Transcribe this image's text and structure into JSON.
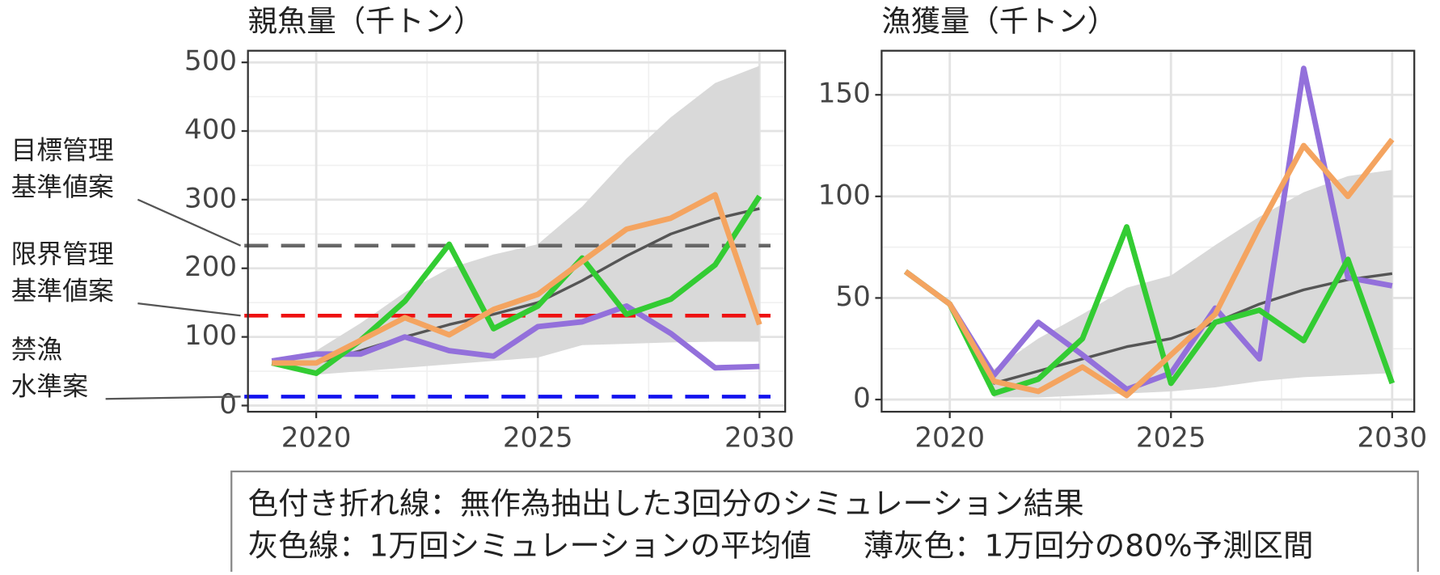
{
  "chart_data": [
    {
      "type": "line",
      "title": "親魚量（千トン）",
      "x": [
        2019,
        2020,
        2021,
        2022,
        2023,
        2024,
        2025,
        2026,
        2027,
        2028,
        2029,
        2030
      ],
      "xlim": [
        2018.46,
        2030.58
      ],
      "xticks": [
        2020,
        2025,
        2030
      ],
      "xminorticks": [
        2022.5,
        2027.5
      ],
      "ylim": [
        -9,
        517
      ],
      "yticks": [
        0,
        100,
        200,
        300,
        400,
        500
      ],
      "yminorticks": [
        50,
        150,
        250,
        350,
        450
      ],
      "grid": true,
      "band": {
        "color": "#d9d9d9",
        "upper": [
          65,
          80,
          120,
          165,
          200,
          220,
          235,
          290,
          360,
          420,
          470,
          495
        ],
        "lower": [
          60,
          45,
          50,
          55,
          60,
          65,
          70,
          88,
          90,
          92,
          93,
          93
        ]
      },
      "series": [
        {
          "color": "#555555",
          "width": 3,
          "values": [
            62,
            62,
            80,
            100,
            118,
            133,
            150,
            182,
            218,
            250,
            272,
            287
          ]
        },
        {
          "color": "#9370db",
          "width": 6,
          "values": [
            65,
            75,
            75,
            100,
            80,
            72,
            115,
            122,
            145,
            105,
            55,
            57
          ]
        },
        {
          "color": "#33cc33",
          "width": 6,
          "values": [
            62,
            47,
            95,
            152,
            235,
            112,
            145,
            215,
            133,
            155,
            205,
            305
          ]
        },
        {
          "color": "#f4a460",
          "width": 6,
          "values": [
            62,
            62,
            95,
            128,
            103,
            140,
            162,
            210,
            257,
            273,
            307,
            118
          ]
        }
      ],
      "hlines": [
        {
          "value": 233,
          "color": "#666666",
          "label": [
            "目標管理",
            "基準値案"
          ]
        },
        {
          "value": 131,
          "color": "#ee1111",
          "label": [
            "限界管理",
            "基準値案"
          ]
        },
        {
          "value": 13,
          "color": "#1111ee",
          "label": [
            "禁漁",
            "水準案"
          ]
        }
      ]
    },
    {
      "type": "line",
      "title": "漁獲量（千トン）",
      "x": [
        2019,
        2020,
        2021,
        2022,
        2023,
        2024,
        2025,
        2026,
        2027,
        2028,
        2029,
        2030
      ],
      "xlim": [
        2018.46,
        2030.5
      ],
      "xticks": [
        2020,
        2025,
        2030
      ],
      "xminorticks": [
        2022.5,
        2027.5
      ],
      "ylim": [
        -6,
        171.7
      ],
      "yticks": [
        0,
        50,
        100,
        150
      ],
      "yminorticks": [
        25,
        75,
        125
      ],
      "grid": true,
      "band": {
        "color": "#d9d9d9",
        "upper": [
          63,
          47,
          15,
          30,
          42,
          55,
          61,
          76,
          90,
          102,
          110,
          113
        ],
        "lower": [
          63,
          47,
          1,
          1,
          2,
          3,
          4,
          6,
          9,
          11,
          12,
          13
        ]
      },
      "series": [
        {
          "color": "#555555",
          "width": 3,
          "values": [
            63,
            47,
            8,
            14,
            20,
            26,
            30,
            38,
            47,
            54,
            59,
            62
          ]
        },
        {
          "color": "#9370db",
          "width": 6,
          "values": [
            63,
            47,
            12,
            38,
            22,
            5,
            13,
            45,
            20,
            163,
            60,
            56
          ]
        },
        {
          "color": "#33cc33",
          "width": 6,
          "values": [
            63,
            47,
            3,
            10,
            30,
            85,
            8,
            38,
            44,
            29,
            69,
            8
          ]
        },
        {
          "color": "#f4a460",
          "width": 6,
          "values": [
            63,
            47,
            9,
            4,
            16,
            2,
            22,
            42,
            85,
            125,
            100,
            128
          ]
        }
      ],
      "hlines": []
    }
  ],
  "notes": [
    "色付き折れ線：無作為抽出した3回分のシミュレーション結果",
    "灰色線：1万回シミュレーションの平均値",
    "薄灰色：1万回分の80%予測区間"
  ]
}
